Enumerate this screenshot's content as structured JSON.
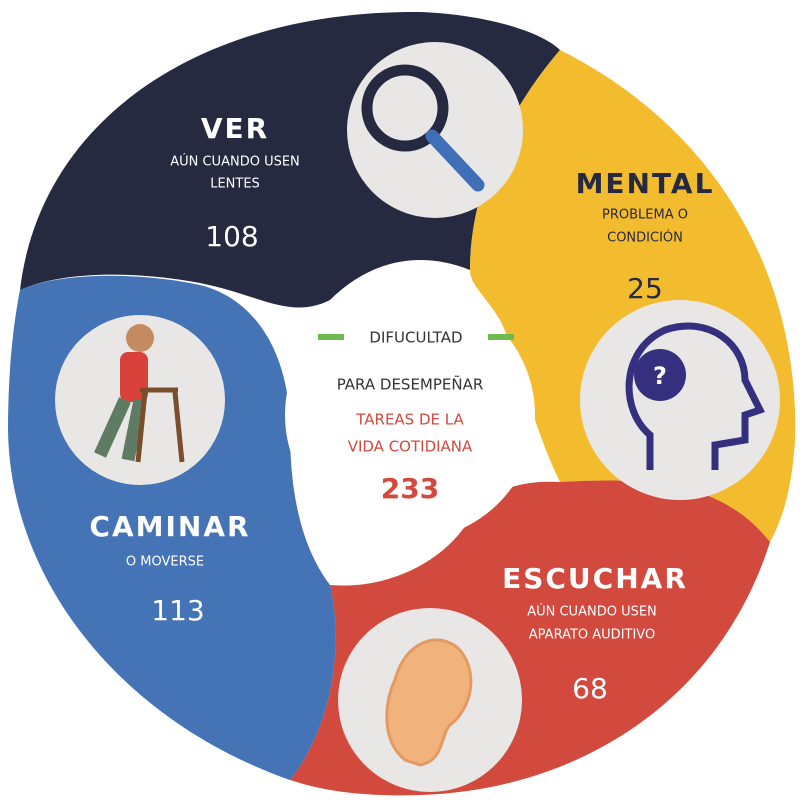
{
  "center": {
    "heading": "DIFUCULTAD",
    "line1": "PARA DESEMPEÑAR",
    "line2": "TAREAS DE LA",
    "line3": "VIDA COTIDIANA",
    "value": 233
  },
  "segments": [
    {
      "title": "VER",
      "lines": [
        "AÚN CUANDO USEN",
        "LENTES"
      ],
      "value": 108
    },
    {
      "title": "MENTAL",
      "lines": [
        "PROBLEMA O",
        "CONDICIÓN"
      ],
      "value": 25
    },
    {
      "title": "CAMINAR",
      "lines": [
        "O MOVERSE"
      ],
      "value": 113
    },
    {
      "title": "ESCUCHAR",
      "lines": [
        "AÚN CUANDO USEN",
        "APARATO AUDITIVO"
      ],
      "value": 68
    }
  ]
}
